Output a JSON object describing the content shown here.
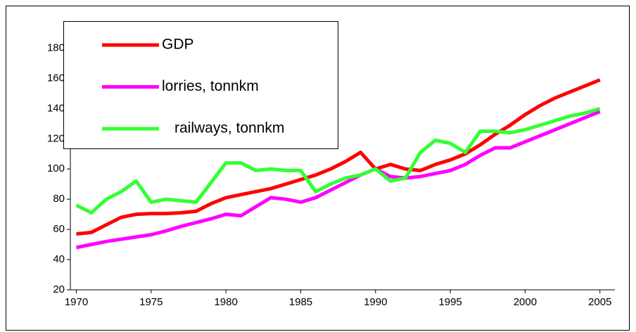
{
  "chart_data": {
    "type": "line",
    "x": [
      1970,
      1971,
      1972,
      1973,
      1974,
      1975,
      1976,
      1977,
      1978,
      1979,
      1980,
      1981,
      1982,
      1983,
      1984,
      1985,
      1986,
      1987,
      1988,
      1989,
      1990,
      1991,
      1992,
      1993,
      1994,
      1995,
      1996,
      1997,
      1998,
      1999,
      2000,
      2001,
      2002,
      2003,
      2004,
      2005
    ],
    "series": [
      {
        "name": "GDP",
        "color": "#ff0000",
        "values": [
          57,
          58,
          63,
          68,
          70,
          70.5,
          70.5,
          71,
          72,
          77,
          81,
          83,
          85,
          87,
          90,
          93,
          96,
          100,
          105,
          111,
          100,
          103,
          100,
          99,
          103,
          106,
          110,
          116,
          123,
          129,
          136,
          142,
          147,
          151,
          155,
          159
        ]
      },
      {
        "name": "lorries, tonnkm",
        "color": "#ff00ff",
        "values": [
          48,
          50,
          52,
          53.5,
          55,
          56.5,
          59,
          62,
          64.5,
          67,
          70,
          69,
          75,
          81,
          80,
          78,
          81,
          86,
          91,
          96,
          100,
          95,
          94,
          95,
          97,
          99,
          103,
          109,
          114,
          114,
          118,
          122,
          126,
          130,
          134,
          138
        ]
      },
      {
        "name": "railways, tonnkm",
        "color": "#33ff33",
        "values": [
          76,
          71,
          80,
          85,
          92,
          78,
          80,
          79,
          78,
          91,
          104,
          104,
          99,
          100,
          99,
          99,
          85,
          90,
          94,
          96,
          100,
          92,
          94,
          111,
          119,
          117,
          111,
          125,
          125,
          124,
          126,
          129,
          132,
          135,
          137,
          140
        ]
      }
    ],
    "xlim": [
      1969.6,
      2006
    ],
    "xticks": [
      1970,
      1975,
      1980,
      1985,
      1990,
      1995,
      2000,
      2005
    ],
    "ylim": [
      20,
      190
    ],
    "yticks": [
      20,
      40,
      60,
      80,
      100,
      120,
      140,
      160,
      180
    ],
    "grid": false,
    "legend": "upper left"
  }
}
